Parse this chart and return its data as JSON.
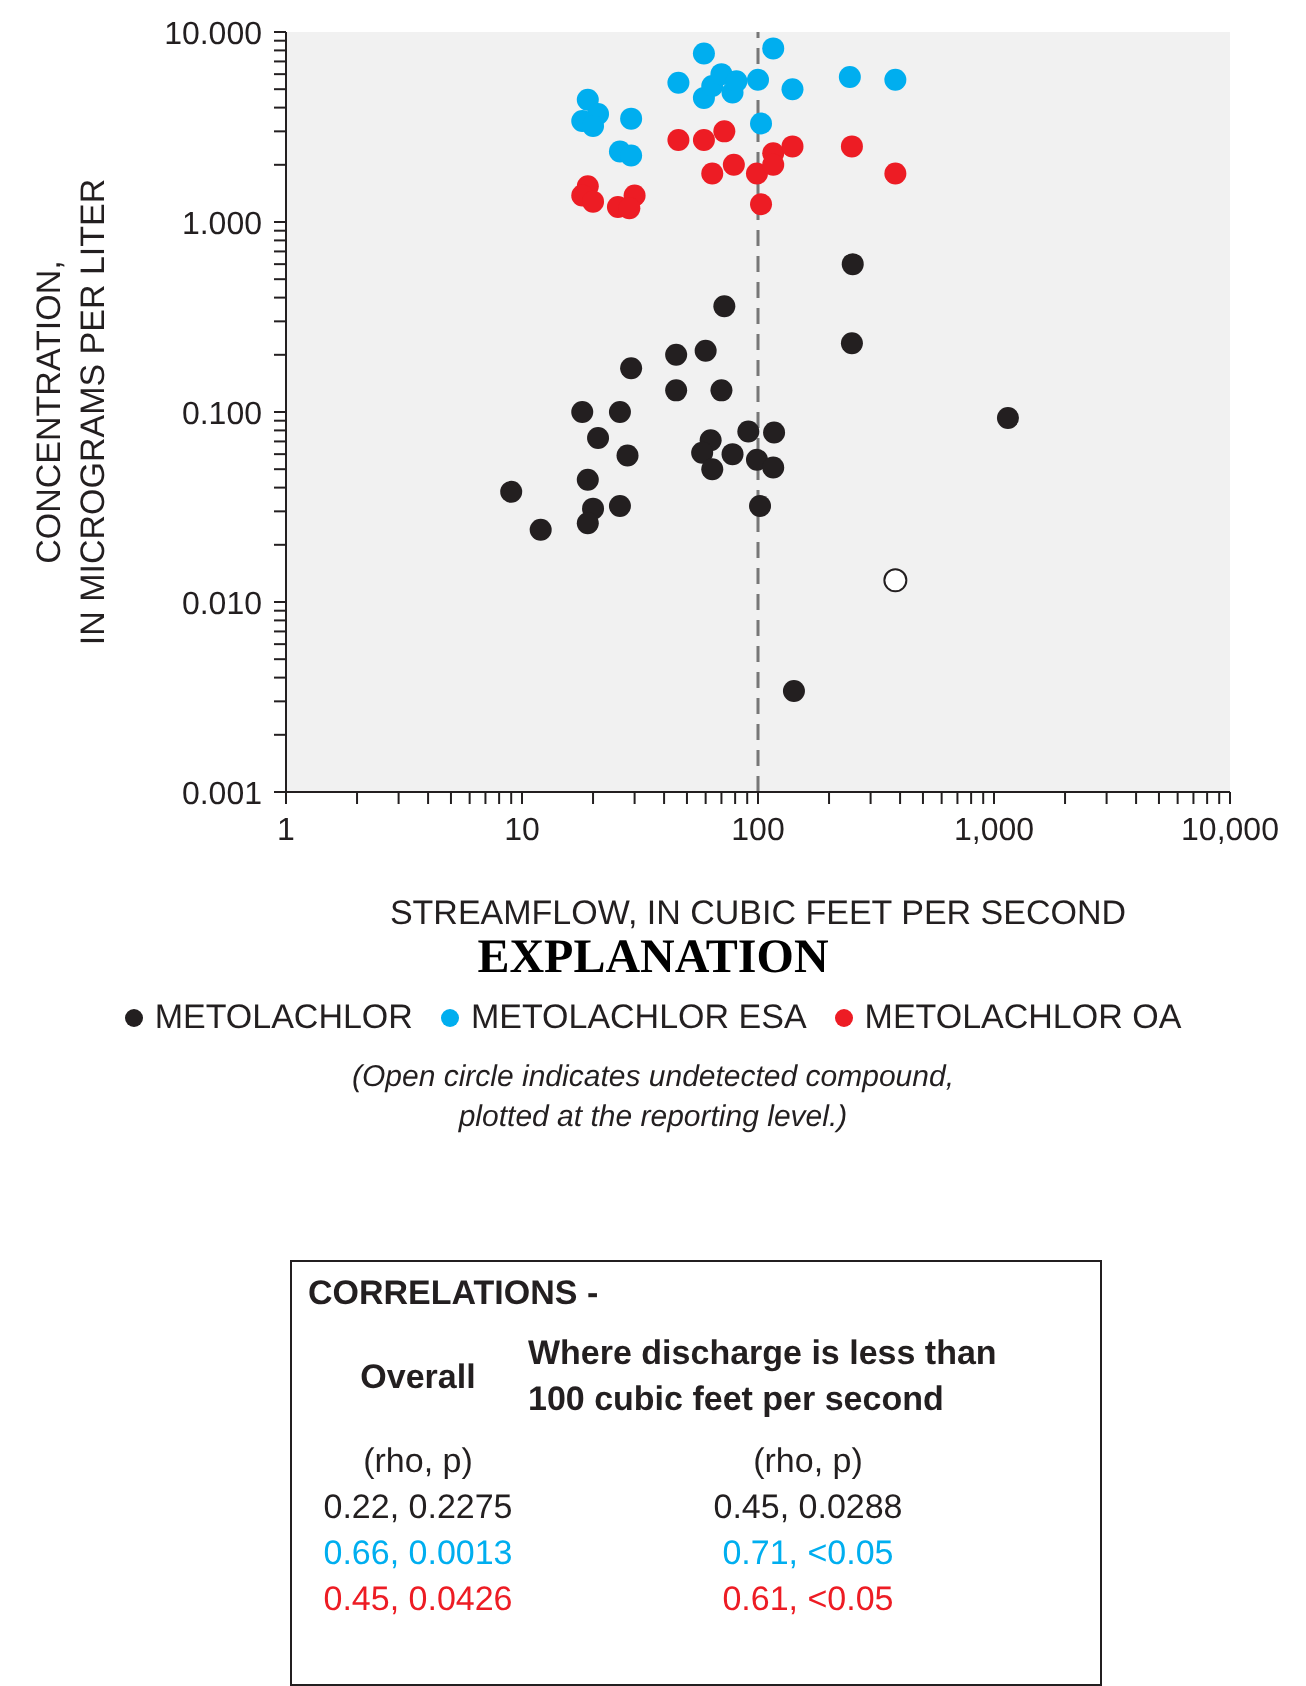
{
  "chart_data": {
    "type": "scatter",
    "xlabel": "STREAMFLOW, IN CUBIC FEET PER SECOND",
    "ylabel": "CONCENTRATION,\nIN MICROGRAMS PER LITER",
    "legend_title": "EXPLANATION",
    "legend": "bottom",
    "log": "xy",
    "grid": false,
    "marker": "circle",
    "xlim": [
      1,
      10000
    ],
    "xticks": [
      1,
      {
        "value": 2,
        "label": null
      },
      {
        "value": 3,
        "label": null
      },
      {
        "value": 4,
        "label": null
      },
      {
        "value": 5,
        "label": null
      },
      {
        "value": 6,
        "label": null
      },
      {
        "value": 7,
        "label": null
      },
      {
        "value": 8,
        "label": null
      },
      {
        "value": 9,
        "label": null
      },
      10,
      {
        "value": 20,
        "label": null
      },
      {
        "value": 30,
        "label": null
      },
      {
        "value": 40,
        "label": null
      },
      {
        "value": 50,
        "label": null
      },
      {
        "value": 60,
        "label": null
      },
      {
        "value": 70,
        "label": null
      },
      {
        "value": 80,
        "label": null
      },
      {
        "value": 90,
        "label": null
      },
      100,
      {
        "value": 200,
        "label": null
      },
      {
        "value": 300,
        "label": null
      },
      {
        "value": 400,
        "label": null
      },
      {
        "value": 500,
        "label": null
      },
      {
        "value": 600,
        "label": null
      },
      {
        "value": 700,
        "label": null
      },
      {
        "value": 800,
        "label": null
      },
      {
        "value": 900,
        "label": null
      },
      {
        "value": 1000,
        "label": "1,000"
      },
      {
        "value": 2000,
        "label": null
      },
      {
        "value": 3000,
        "label": null
      },
      {
        "value": 4000,
        "label": null
      },
      {
        "value": 5000,
        "label": null
      },
      {
        "value": 6000,
        "label": null
      },
      {
        "value": 7000,
        "label": null
      },
      {
        "value": 8000,
        "label": null
      },
      {
        "value": 9000,
        "label": null
      },
      {
        "value": 10000,
        "label": "10,000"
      }
    ],
    "ylim": [
      0.001,
      10
    ],
    "yticks": [
      {
        "value": 0.001,
        "label": "0.001"
      },
      {
        "value": 0.002,
        "label": null
      },
      {
        "value": 0.003,
        "label": null
      },
      {
        "value": 0.004,
        "label": null
      },
      {
        "value": 0.005,
        "label": null
      },
      {
        "value": 0.006,
        "label": null
      },
      {
        "value": 0.007,
        "label": null
      },
      {
        "value": 0.008,
        "label": null
      },
      {
        "value": 0.009,
        "label": null
      },
      {
        "value": 0.01,
        "label": "0.010"
      },
      {
        "value": 0.02,
        "label": null
      },
      {
        "value": 0.03,
        "label": null
      },
      {
        "value": 0.04,
        "label": null
      },
      {
        "value": 0.05,
        "label": null
      },
      {
        "value": 0.06,
        "label": null
      },
      {
        "value": 0.07,
        "label": null
      },
      {
        "value": 0.08,
        "label": null
      },
      {
        "value": 0.09,
        "label": null
      },
      {
        "value": 0.1,
        "label": "0.100"
      },
      {
        "value": 0.2,
        "label": null
      },
      {
        "value": 0.3,
        "label": null
      },
      {
        "value": 0.4,
        "label": null
      },
      {
        "value": 0.5,
        "label": null
      },
      {
        "value": 0.6,
        "label": null
      },
      {
        "value": 0.7,
        "label": null
      },
      {
        "value": 0.8,
        "label": null
      },
      {
        "value": 0.9,
        "label": null
      },
      {
        "value": 1,
        "label": "1.000"
      },
      {
        "value": 2,
        "label": null
      },
      {
        "value": 3,
        "label": null
      },
      {
        "value": 4,
        "label": null
      },
      {
        "value": 5,
        "label": null
      },
      {
        "value": 6,
        "label": null
      },
      {
        "value": 7,
        "label": null
      },
      {
        "value": 8,
        "label": null
      },
      {
        "value": 9,
        "label": null
      },
      {
        "value": 10,
        "label": "10.000"
      }
    ],
    "ref_lines": [
      {
        "axis": "x",
        "value": 100,
        "label": null,
        "color": "#777777",
        "line_style": "dashed"
      }
    ],
    "series": [
      {
        "name": "METOLACHLOR",
        "color": "#231f20",
        "x": [
          252,
          250,
          72,
          29,
          45,
          60,
          45,
          70,
          18,
          26,
          21,
          28,
          63,
          58,
          64,
          78,
          91,
          117,
          99,
          116,
          19,
          9,
          20,
          19,
          26,
          12,
          102,
          1146,
          142
        ],
        "values": [
          0.6,
          0.23,
          0.36,
          0.17,
          0.2,
          0.21,
          0.13,
          0.13,
          0.1,
          0.1,
          0.073,
          0.059,
          0.071,
          0.061,
          0.05,
          0.06,
          0.079,
          0.078,
          0.056,
          0.051,
          0.044,
          0.038,
          0.031,
          0.026,
          0.032,
          0.024,
          0.032,
          0.093,
          0.0034
        ]
      },
      {
        "name": "METOLACHLOR ESA",
        "color": "#00aeef",
        "x": [
          59,
          116,
          19,
          21,
          18,
          20,
          29,
          26,
          29,
          46,
          59,
          64,
          70,
          78,
          81,
          100,
          103,
          140,
          245,
          382
        ],
        "values": [
          7.7,
          8.2,
          4.4,
          3.7,
          3.4,
          3.2,
          3.5,
          2.35,
          2.24,
          5.4,
          4.5,
          5.2,
          6.0,
          4.8,
          5.5,
          5.6,
          3.3,
          5.0,
          5.8,
          5.6
        ]
      },
      {
        "name": "METOLACHLOR OA",
        "color": "#ed1c24",
        "x": [
          46,
          59,
          72,
          64,
          79,
          99,
          116,
          116,
          140,
          103,
          250,
          382,
          19,
          18,
          20,
          25.5,
          30,
          28.5
        ],
        "values": [
          2.7,
          2.7,
          3.0,
          1.8,
          2.0,
          1.8,
          2.3,
          2.0,
          2.5,
          1.24,
          2.5,
          1.8,
          1.54,
          1.38,
          1.28,
          1.2,
          1.38,
          1.18
        ]
      },
      {
        "color": "#ffffff",
        "x": [
          382
        ],
        "values": [
          0.013
        ]
      }
    ],
    "annotations": [
      "(Open circle indicates undetected compound,\nplotted at the reporting level.)",
      "CORRELATIONS -",
      "Overall",
      "Where discharge is less than\n100 cubic feet per second",
      "(rho, p)",
      "(rho, p)",
      "0.22, 0.2275",
      "0.45, 0.0288",
      "0.66, 0.0013",
      "0.71, <0.05",
      "0.45, 0.0426",
      "0.61, <0.05"
    ]
  }
}
